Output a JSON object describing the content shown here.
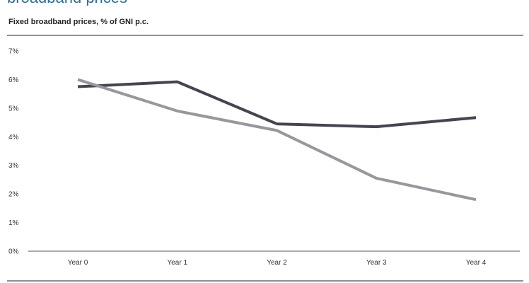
{
  "header": {
    "title": "broadband prices",
    "subtitle": "Fixed broadband prices, % of GNI p.c."
  },
  "chart_data": {
    "type": "line",
    "title": "broadband prices",
    "subtitle": "Fixed broadband prices, % of GNI p.c.",
    "xlabel": "",
    "ylabel": "",
    "categories": [
      "Year 0",
      "Year 1",
      "Year 2",
      "Year 3",
      "Year 4"
    ],
    "ylim": [
      0,
      7
    ],
    "yticks": [
      0,
      1,
      2,
      3,
      4,
      5,
      6,
      7
    ],
    "ytick_labels": [
      "0%",
      "1%",
      "2%",
      "3%",
      "4%",
      "5%",
      "6%",
      "7%"
    ],
    "grid": false,
    "legend": "none",
    "series": [
      {
        "values": [
          5.75,
          5.92,
          4.45,
          4.35,
          4.67
        ],
        "color": "#45444f"
      },
      {
        "values": [
          6.0,
          4.9,
          4.22,
          2.55,
          1.8
        ],
        "color": "#98979d"
      }
    ]
  }
}
